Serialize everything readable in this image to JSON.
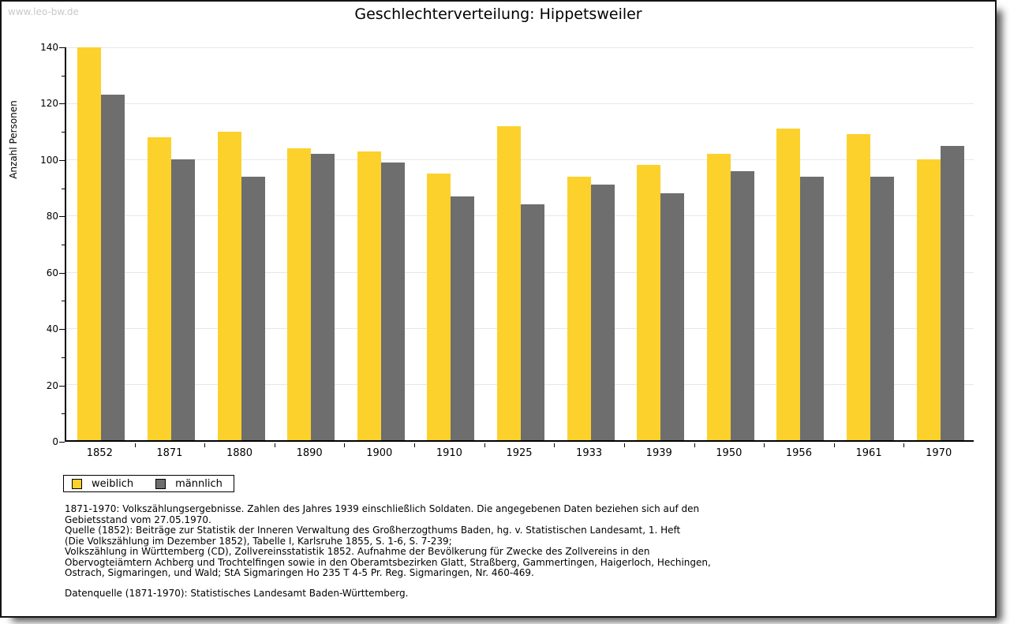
{
  "watermark": "www.leo-bw.de",
  "title": "Geschlechterverteilung: Hippetsweiler",
  "chart_data": {
    "type": "bar",
    "title": "Geschlechterverteilung: Hippetsweiler",
    "xlabel": "",
    "ylabel": "Anzahl Personen",
    "ylim": [
      0,
      140
    ],
    "ytick_step": 20,
    "yminor_step": 10,
    "grid": "horizontal",
    "legend_position": "bottom-left",
    "categories": [
      "1852",
      "1871",
      "1880",
      "1890",
      "1900",
      "1910",
      "1925",
      "1933",
      "1939",
      "1950",
      "1956",
      "1961",
      "1970"
    ],
    "series": [
      {
        "name": "weiblich",
        "color": "#fcd12b",
        "values": [
          140,
          108,
          110,
          104,
          103,
          95,
          112,
          94,
          98,
          102,
          111,
          109,
          100
        ]
      },
      {
        "name": "männlich",
        "color": "#6e6e6e",
        "values": [
          123,
          100,
          94,
          102,
          99,
          87,
          84,
          91,
          88,
          96,
          94,
          94,
          105
        ]
      }
    ]
  },
  "colors": {
    "weiblich": "#fcd12b",
    "männlich": "#6e6e6e",
    "gridline": "#e7e7e7",
    "watermark": "#c9c9c9"
  },
  "footnotes": [
    "1871-1970: Volkszählungsergebnisse. Zahlen des Jahres 1939 einschließlich Soldaten. Die angegebenen Daten beziehen sich auf den",
    "Gebietsstand vom 27.05.1970.",
    "Quelle (1852): Beiträge zur Statistik der Inneren Verwaltung des Großherzogthums Baden, hg. v. Statistischen Landesamt, 1. Heft",
    "(Die Volkszählung im Dezember 1852), Tabelle I, Karlsruhe 1855, S. 1-6, S. 7-239;",
    "Volkszählung in Württemberg (CD), Zollvereinsstatistik 1852. Aufnahme der Bevölkerung für Zwecke des Zollvereins in den",
    "Obervogteiämtern Achberg und Trochtelfingen sowie in den Oberamtsbezirken Glatt, Straßberg, Gammertingen, Haigerloch, Hechingen,",
    "Ostrach, Sigmaringen, und Wald; StA Sigmaringen Ho 235 T 4-5 Pr. Reg. Sigmaringen, Nr. 460-469."
  ],
  "datasource": "Datenquelle (1871-1970): Statistisches Landesamt Baden-Württemberg."
}
